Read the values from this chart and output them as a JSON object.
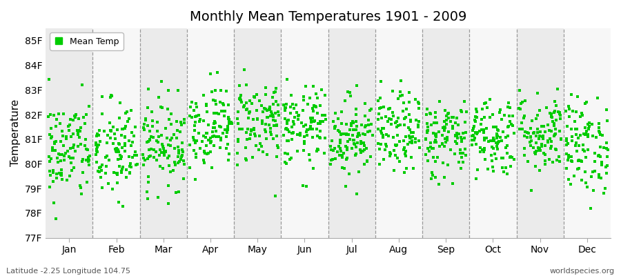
{
  "title": "Monthly Mean Temperatures 1901 - 2009",
  "ylabel": "Temperature",
  "xlabel_labels": [
    "Jan",
    "Feb",
    "Mar",
    "Apr",
    "May",
    "Jun",
    "Jul",
    "Aug",
    "Sep",
    "Oct",
    "Nov",
    "Dec"
  ],
  "ylim": [
    77,
    85.5
  ],
  "yticks": [
    77,
    78,
    79,
    80,
    81,
    82,
    83,
    84,
    85
  ],
  "ytick_labels": [
    "77F",
    "78F",
    "79F",
    "80F",
    "81F",
    "82F",
    "83F",
    "84F",
    "85F"
  ],
  "dot_color": "#00cc00",
  "background_color": "#ffffff",
  "plot_bg_color": "#ffffff",
  "band_even_color": "#ebebeb",
  "band_odd_color": "#f7f7f7",
  "legend_label": "Mean Temp",
  "footer_left": "Latitude -2.25 Longitude 104.75",
  "footer_right": "worldspecies.org",
  "n_years": 109,
  "seed": 42,
  "monthly_means": [
    80.55,
    80.5,
    80.85,
    81.55,
    81.75,
    81.45,
    81.15,
    81.25,
    81.05,
    81.15,
    81.25,
    80.75
  ],
  "monthly_stds": [
    1.05,
    1.05,
    0.9,
    0.82,
    0.88,
    0.82,
    0.82,
    0.82,
    0.82,
    0.82,
    0.82,
    0.98
  ]
}
